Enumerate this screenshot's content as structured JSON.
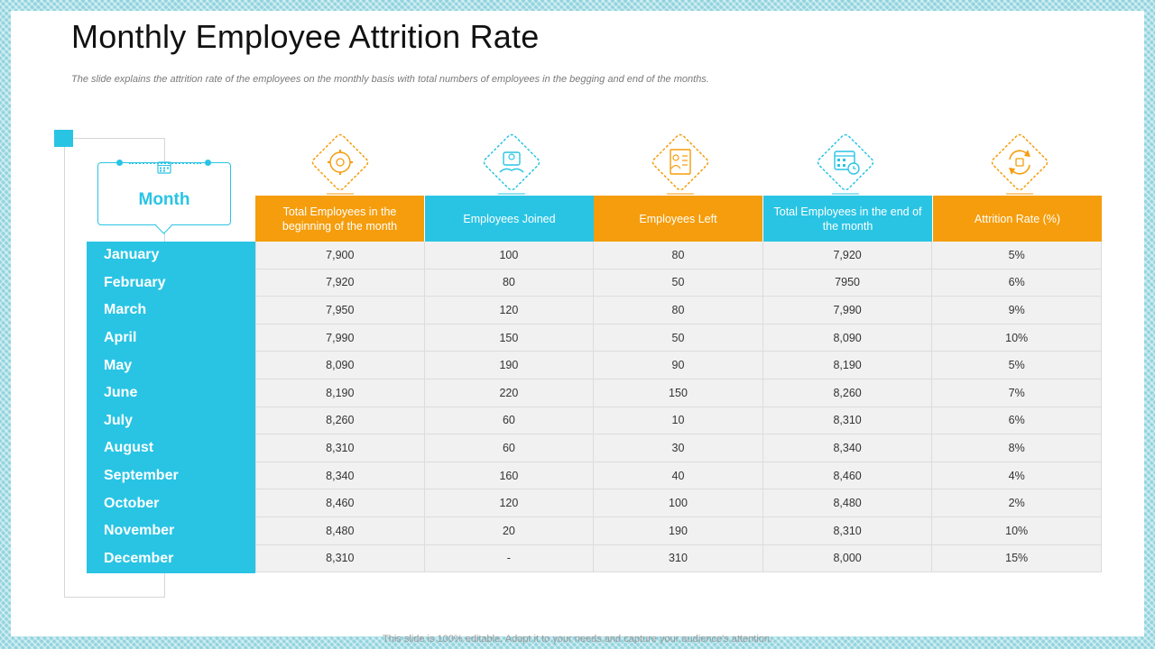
{
  "title": "Monthly Employee Attrition Rate",
  "subtitle": "The slide explains the attrition rate of the employees on the monthly basis with total numbers of employees in the begging and end of the months.",
  "footer": "This slide is 100% editable. Adapt it to your needs and capture your audience's attention.",
  "month_header": "Month",
  "colors": {
    "orange": "#f59d0c",
    "blue": "#29c4e4"
  },
  "columns": [
    {
      "label": "Total Employees in the beginning of the month",
      "icon": "gear-people-icon",
      "color": "orange"
    },
    {
      "label": "Employees Joined",
      "icon": "handshake-icon",
      "color": "blue"
    },
    {
      "label": "Employees Left",
      "icon": "resume-person-icon",
      "color": "orange"
    },
    {
      "label": "Total Employees in the end of the month",
      "icon": "calendar-clock-icon",
      "color": "blue"
    },
    {
      "label": "Attrition Rate (%)",
      "icon": "refresh-cycle-icon",
      "color": "orange"
    }
  ],
  "rows": [
    {
      "month": "January",
      "values": [
        "7,900",
        "100",
        "80",
        "7,920",
        "5%"
      ]
    },
    {
      "month": "February",
      "values": [
        "7,920",
        "80",
        "50",
        "7950",
        "6%"
      ]
    },
    {
      "month": "March",
      "values": [
        "7,950",
        "120",
        "80",
        "7,990",
        "9%"
      ]
    },
    {
      "month": "April",
      "values": [
        "7,990",
        "150",
        "50",
        "8,090",
        "10%"
      ]
    },
    {
      "month": "May",
      "values": [
        "8,090",
        "190",
        "90",
        "8,190",
        "5%"
      ]
    },
    {
      "month": "June",
      "values": [
        "8,190",
        "220",
        "150",
        "8,260",
        "7%"
      ]
    },
    {
      "month": "July",
      "values": [
        "8,260",
        "60",
        "10",
        "8,310",
        "6%"
      ]
    },
    {
      "month": "August",
      "values": [
        "8,310",
        "60",
        "30",
        "8,340",
        "8%"
      ]
    },
    {
      "month": "September",
      "values": [
        "8,340",
        "160",
        "40",
        "8,460",
        "4%"
      ]
    },
    {
      "month": "October",
      "values": [
        "8,460",
        "120",
        "100",
        "8,480",
        "2%"
      ]
    },
    {
      "month": "November",
      "values": [
        "8,480",
        "20",
        "190",
        "8,310",
        "10%"
      ]
    },
    {
      "month": "December",
      "values": [
        "8,310",
        "-",
        "310",
        "8,000",
        "15%"
      ]
    }
  ]
}
